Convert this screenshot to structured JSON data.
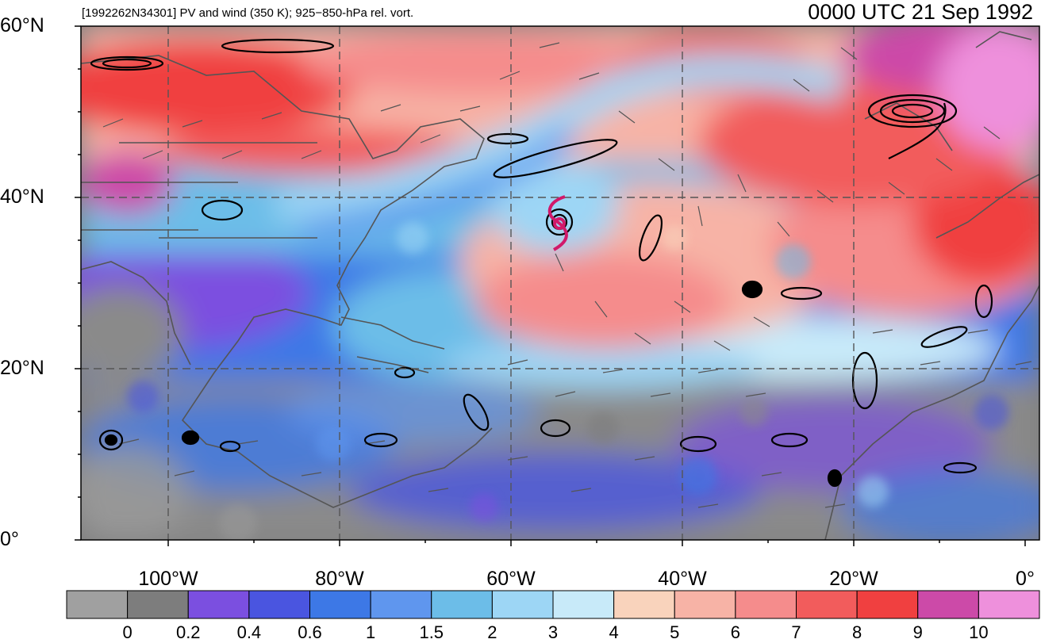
{
  "header": {
    "left_title": "[1992262N34301] PV and wind (350 K); 925−850-hPa rel. vort.",
    "right_title": "0000 UTC 21 Sep 1992"
  },
  "axes": {
    "lat_labels": [
      "60°N",
      "40°N",
      "20°N",
      "0°"
    ],
    "lon_labels": [
      "100°W",
      "80°W",
      "60°W",
      "40°W",
      "20°W",
      "0°"
    ]
  },
  "colorbar": {
    "labels": [
      "0",
      "0.2",
      "0.4",
      "0.6",
      "1",
      "1.5",
      "2",
      "3",
      "4",
      "5",
      "6",
      "7",
      "8",
      "9",
      "10"
    ],
    "colors": [
      "#a0a0a0",
      "#7d7d7d",
      "#7b4fe0",
      "#4a55e0",
      "#3d78e6",
      "#5f96ee",
      "#6cbde8",
      "#9dd6f5",
      "#c8eaf9",
      "#f9d3bc",
      "#f7b3a6",
      "#f58c8c",
      "#f25c5c",
      "#f04040",
      "#cc4aa8",
      "#ee90dc"
    ]
  },
  "map_colors": {
    "land": "#555555",
    "grid": "#555555",
    "contour": "#000000",
    "storm_symbol": "#d1186a"
  }
}
